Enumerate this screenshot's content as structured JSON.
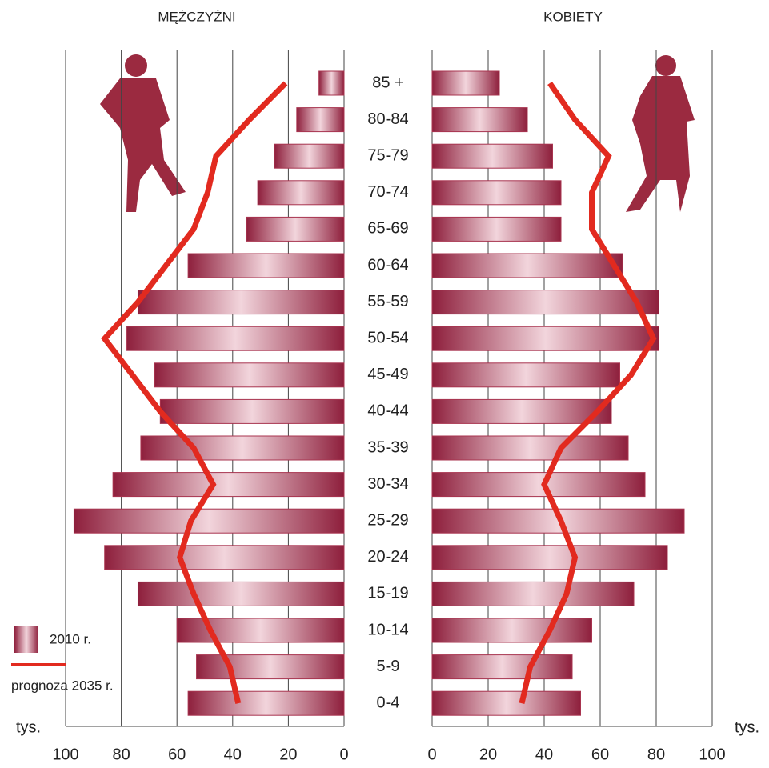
{
  "chart_data": {
    "type": "pyramid",
    "categories": [
      "85 +",
      "80-84",
      "75-79",
      "70-74",
      "65-69",
      "60-64",
      "55-59",
      "50-54",
      "45-49",
      "40-44",
      "35-39",
      "30-34",
      "25-29",
      "20-24",
      "15-19",
      "10-14",
      "5-9",
      "0-4"
    ],
    "panels": [
      {
        "title": "MĘŻCZYŹNI",
        "key": "male",
        "side": "left"
      },
      {
        "title": "KOBIETY",
        "key": "female",
        "side": "right"
      }
    ],
    "series": [
      {
        "name": "2010 r.",
        "color": "#a8344f",
        "kind": "bar",
        "male": [
          9,
          17,
          25,
          31,
          35,
          56,
          74,
          78,
          68,
          66,
          73,
          83,
          97,
          86,
          74,
          60,
          53,
          56
        ],
        "female": [
          24,
          34,
          43,
          46,
          46,
          68,
          81,
          81,
          67,
          64,
          70,
          76,
          90,
          84,
          72,
          57,
          50,
          53
        ]
      },
      {
        "name": "prognoza 2035 r.",
        "color": "#e22a1f",
        "kind": "line",
        "male": [
          21,
          34,
          46,
          49,
          54,
          64,
          74,
          86,
          76,
          66,
          54,
          47,
          55,
          59,
          54,
          48,
          41,
          38
        ],
        "female": [
          42,
          51,
          63,
          57,
          57,
          65,
          73,
          79,
          71,
          59,
          46,
          40,
          46,
          51,
          48,
          42,
          35,
          32
        ]
      }
    ],
    "xlim": [
      0,
      100
    ],
    "xticks": [
      0,
      20,
      40,
      60,
      80,
      100
    ],
    "unit": "tys.",
    "grid": true
  }
}
